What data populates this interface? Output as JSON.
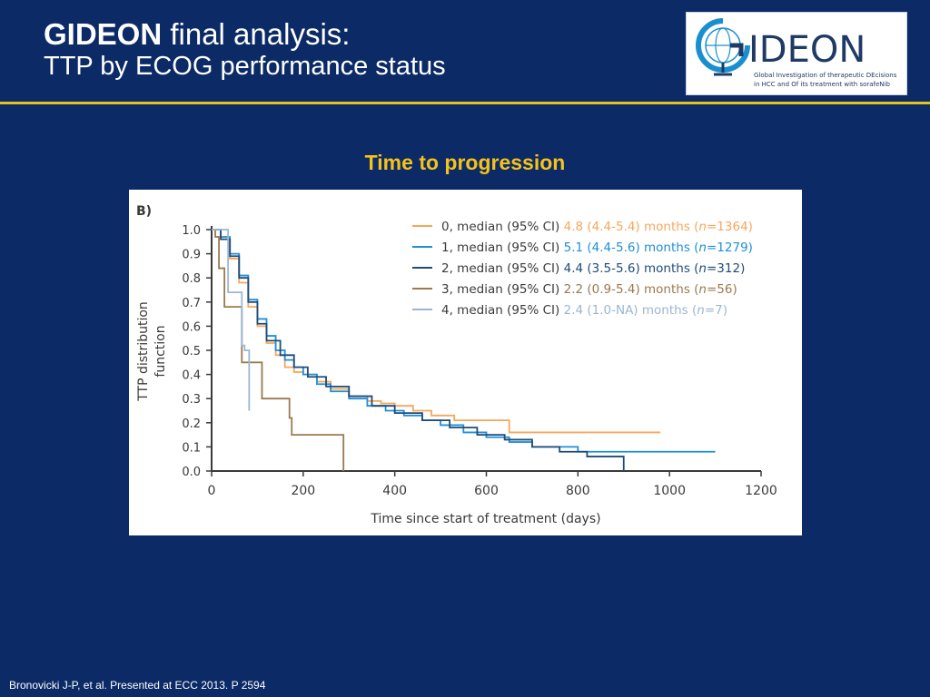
{
  "header": {
    "title_bold": "GIDEON",
    "title_rest": " final analysis:",
    "subtitle": "TTP by ECOG performance status"
  },
  "logo": {
    "text": "IDEON",
    "tagline_line1": "Global Investigation of therapeutic DEcisions",
    "tagline_line2": "in HCC and Of its treatment with sorafeNib"
  },
  "chart_heading": "Time to progression",
  "footer": "Bronovicki J-P, et al. Presented at ECC 2013. P 2594",
  "colors": {
    "background": "#0b2a66",
    "accent_rule": "#e9c21a",
    "heading": "#f6c21a",
    "ecog0": "#f7a75a",
    "ecog1": "#1f8fd6",
    "ecog2": "#1f4b78",
    "ecog3": "#9a7a4e",
    "ecog4": "#9bb6d4"
  },
  "chart_data": {
    "type": "line",
    "panel_label": "B)",
    "xlabel": "Time since start of treatment (days)",
    "ylabel": [
      "TTP distribution",
      "function"
    ],
    "xlim": [
      0,
      1200
    ],
    "ylim": [
      0,
      1.0
    ],
    "xticks": [
      "0",
      "200",
      "400",
      "600",
      "800",
      "1000",
      "1200"
    ],
    "yticks": [
      "0.0",
      "0.1",
      "0.2",
      "0.3",
      "0.4",
      "0.5",
      "0.6",
      "0.7",
      "0.8",
      "0.9",
      "1.0"
    ],
    "legend_position": "top-right",
    "series": [
      {
        "name": "0",
        "legend_prefix": "0, median (95% CI) ",
        "legend_value": "4.8 (4.4-5.4) months (",
        "legend_n": "n",
        "legend_end": "=1364)",
        "color": "#f7a75a",
        "x": [
          0,
          20,
          40,
          60,
          80,
          100,
          120,
          140,
          160,
          180,
          200,
          230,
          260,
          300,
          340,
          370,
          400,
          440,
          480,
          530,
          600,
          650,
          700,
          980
        ],
        "y": [
          1.0,
          0.96,
          0.88,
          0.78,
          0.68,
          0.6,
          0.53,
          0.48,
          0.43,
          0.41,
          0.4,
          0.37,
          0.34,
          0.31,
          0.29,
          0.28,
          0.27,
          0.25,
          0.23,
          0.21,
          0.21,
          0.16,
          0.16,
          0.16
        ]
      },
      {
        "name": "1",
        "legend_prefix": "1, median (95% CI) ",
        "legend_value": "5.1 (4.4-5.6) months (",
        "legend_n": "n",
        "legend_end": "=1279)",
        "color": "#1f8fd6",
        "x": [
          0,
          20,
          40,
          60,
          80,
          100,
          120,
          140,
          160,
          180,
          200,
          230,
          260,
          300,
          340,
          380,
          420,
          460,
          500,
          550,
          600,
          650,
          700,
          800,
          1100
        ],
        "y": [
          1.0,
          0.97,
          0.9,
          0.81,
          0.71,
          0.63,
          0.56,
          0.5,
          0.46,
          0.43,
          0.4,
          0.36,
          0.33,
          0.3,
          0.27,
          0.25,
          0.23,
          0.21,
          0.19,
          0.16,
          0.14,
          0.12,
          0.1,
          0.08,
          0.08
        ]
      },
      {
        "name": "2",
        "legend_prefix": "2, median (95% CI) ",
        "legend_value": "4.4 (3.5-5.6) months (",
        "legend_n": "n",
        "legend_end": "=312)",
        "color": "#1f4b78",
        "x": [
          0,
          20,
          40,
          60,
          80,
          100,
          120,
          150,
          180,
          210,
          250,
          300,
          350,
          400,
          460,
          520,
          580,
          640,
          700,
          760,
          820,
          900,
          900
        ],
        "y": [
          1.0,
          0.96,
          0.89,
          0.8,
          0.7,
          0.61,
          0.54,
          0.48,
          0.43,
          0.39,
          0.35,
          0.31,
          0.27,
          0.24,
          0.21,
          0.18,
          0.15,
          0.13,
          0.1,
          0.08,
          0.06,
          0.05,
          0.0
        ]
      },
      {
        "name": "3",
        "legend_prefix": "3, median (95% CI) ",
        "legend_value": "2.2 (0.9-5.4) months (",
        "legend_n": "n",
        "legend_end": "=56)",
        "color": "#9a7a4e",
        "x": [
          0,
          8,
          16,
          28,
          60,
          66,
          72,
          100,
          110,
          165,
          170,
          175,
          285,
          288
        ],
        "y": [
          1.0,
          0.97,
          0.84,
          0.68,
          0.68,
          0.45,
          0.45,
          0.45,
          0.3,
          0.3,
          0.22,
          0.15,
          0.15,
          0.0
        ]
      },
      {
        "name": "4",
        "legend_prefix": "4, median (95% CI) ",
        "legend_value": "2.4 (1.0-NA) months (",
        "legend_n": "n",
        "legend_end": "=7)",
        "color": "#9bb6d4",
        "x": [
          0,
          30,
          36,
          60,
          66,
          72,
          78,
          82
        ],
        "y": [
          1.0,
          1.0,
          0.74,
          0.74,
          0.52,
          0.5,
          0.5,
          0.25
        ]
      }
    ]
  }
}
